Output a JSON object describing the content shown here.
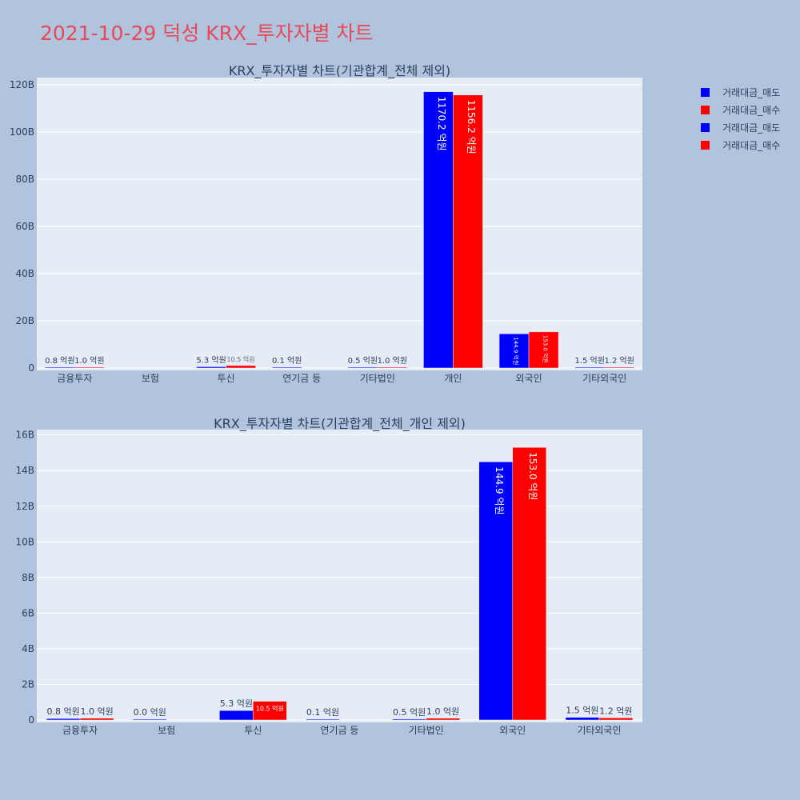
{
  "page": {
    "title": "2021-10-29 덕성 KRX_투자자별 차트",
    "colors": {
      "background": "#b0c4de",
      "plot": "#e5ecf6",
      "title": "#e8495a",
      "sell": "#0000ff",
      "buy": "#ff0000",
      "text": "#2a3f5f"
    }
  },
  "legend": [
    {
      "label": "거래대금_매도",
      "color": "#0000ff"
    },
    {
      "label": "거래대금_매수",
      "color": "#ff0000"
    },
    {
      "label": "거래대금_매도",
      "color": "#0000ff"
    },
    {
      "label": "거래대금_매수",
      "color": "#ff0000"
    }
  ],
  "chart_data": [
    {
      "type": "bar",
      "title": "KRX_투자자별 차트(기관합계_전체 제외)",
      "categories": [
        "금융투자",
        "보험",
        "투신",
        "연기금 등",
        "기타법인",
        "개인",
        "외국인",
        "기타외국인"
      ],
      "ylim": [
        0,
        123
      ],
      "yticks": [
        0,
        20,
        40,
        60,
        80,
        100,
        120
      ],
      "ytick_labels": [
        "0",
        "20B",
        "40B",
        "60B",
        "80B",
        "100B",
        "120B"
      ],
      "grid": true,
      "series": [
        {
          "name": "거래대금_매도",
          "color": "#0000ff",
          "values": [
            0.08,
            null,
            0.53,
            0.01,
            0.05,
            117.02,
            14.49,
            0.15
          ],
          "labels": [
            "0.8 억원",
            "",
            "5.3 억원",
            "0.1 억원",
            "0.5 억원",
            "1170.2 억원",
            "144.9 억원",
            "1.5 억원"
          ]
        },
        {
          "name": "거래대금_매수",
          "color": "#ff0000",
          "values": [
            0.1,
            null,
            1.05,
            null,
            0.1,
            115.62,
            15.3,
            0.12
          ],
          "labels": [
            "1.0 억원",
            "",
            "10.5 억원",
            "",
            "1.0 억원",
            "1156.2 억원",
            "153.0 억원",
            "1.2 억원"
          ]
        }
      ]
    },
    {
      "type": "bar",
      "title": "KRX_투자자별 차트(기관합계_전체_개인 제외)",
      "categories": [
        "금융투자",
        "보험",
        "투신",
        "연기금 등",
        "기타법인",
        "외국인",
        "기타외국인"
      ],
      "ylim": [
        0,
        16.3
      ],
      "yticks": [
        0,
        2,
        4,
        6,
        8,
        10,
        12,
        14,
        16
      ],
      "ytick_labels": [
        "0",
        "2B",
        "4B",
        "6B",
        "8B",
        "10B",
        "12B",
        "14B",
        "16B"
      ],
      "grid": true,
      "series": [
        {
          "name": "거래대금_매도",
          "color": "#0000ff",
          "values": [
            0.08,
            0.0,
            0.53,
            0.01,
            0.05,
            14.49,
            0.15
          ],
          "labels": [
            "0.8 억원",
            "0.0 억원",
            "5.3 억원",
            "0.1 억원",
            "0.5 억원",
            "144.9 억원",
            "1.5 억원"
          ]
        },
        {
          "name": "거래대금_매수",
          "color": "#ff0000",
          "values": [
            0.1,
            null,
            1.05,
            null,
            0.1,
            15.3,
            0.12
          ],
          "labels": [
            "1.0 억원",
            "",
            "10.5 억원",
            "",
            "1.0 억원",
            "153.0 억원",
            "1.2 억원"
          ]
        }
      ]
    }
  ]
}
